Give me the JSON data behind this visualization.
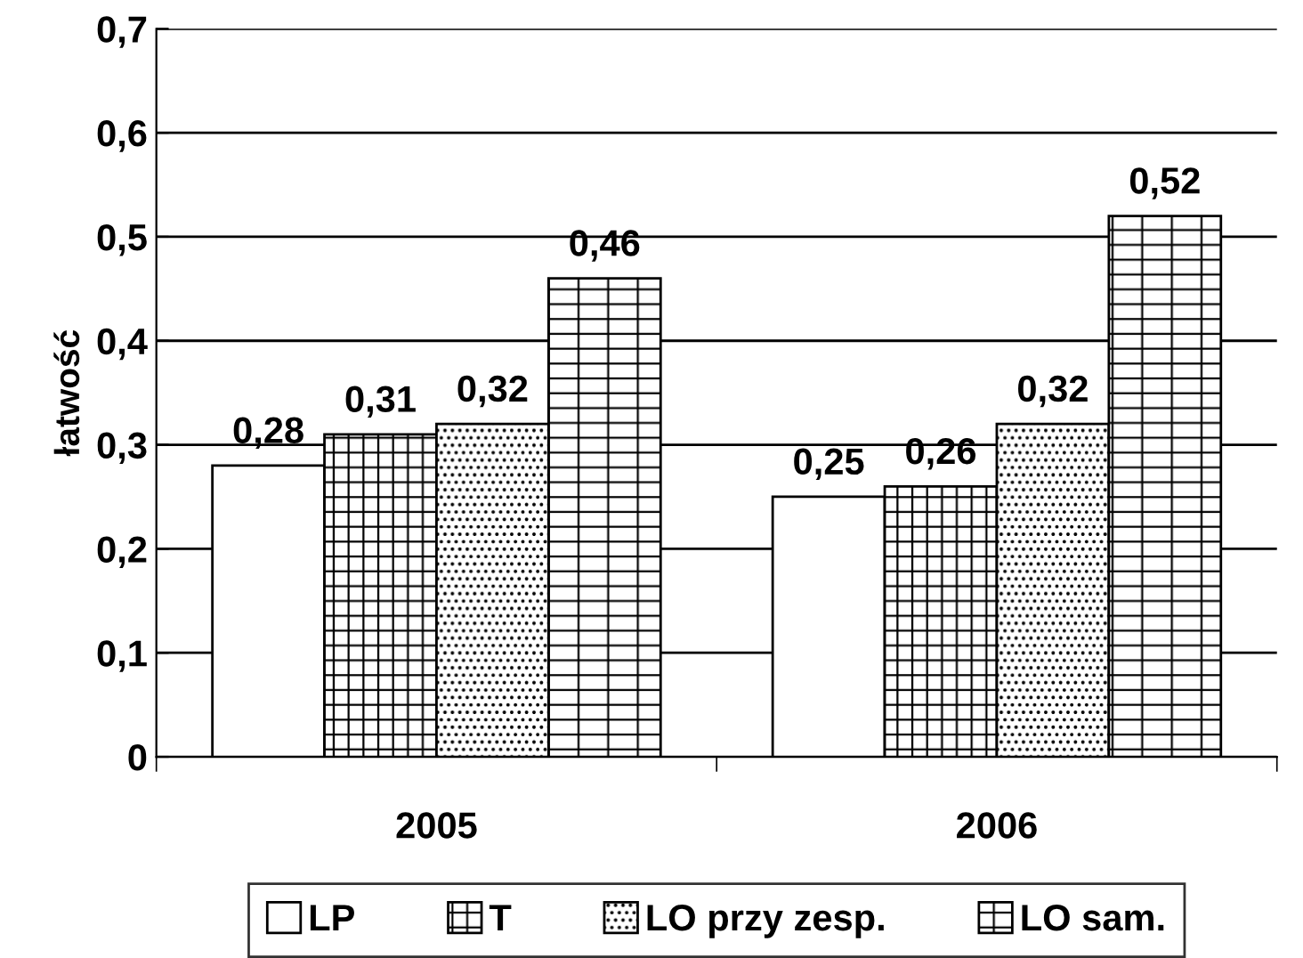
{
  "chart_data": {
    "type": "bar",
    "ylabel": "łatwość",
    "categories": [
      "2005",
      "2006"
    ],
    "series": [
      {
        "name": "LP",
        "color": "#ffffff",
        "values": [
          0.28,
          0.25
        ],
        "value_labels": [
          "0,28",
          "0,25"
        ]
      },
      {
        "name": "T",
        "color": "#000000",
        "values": [
          0.31,
          0.26
        ],
        "value_labels": [
          "0,31",
          "0,26"
        ]
      },
      {
        "name": "LO przy zesp.",
        "color": "#000000",
        "values": [
          0.32,
          0.32
        ],
        "value_labels": [
          "0,32",
          "0,32"
        ]
      },
      {
        "name": "LO sam.",
        "color": "#000000",
        "values": [
          0.46,
          0.52
        ],
        "value_labels": [
          "0,46",
          "0,52"
        ]
      }
    ],
    "ylim": [
      0,
      0.7
    ],
    "yticks": [
      {
        "value": 0,
        "label": "0"
      },
      {
        "value": 0.1,
        "label": "0,1"
      },
      {
        "value": 0.2,
        "label": "0,2"
      },
      {
        "value": 0.3,
        "label": "0,3"
      },
      {
        "value": 0.4,
        "label": "0,4"
      },
      {
        "value": 0.5,
        "label": "0,5"
      },
      {
        "value": 0.6,
        "label": "0,6"
      },
      {
        "value": 0.7,
        "label": "0,7"
      }
    ],
    "grid": "y",
    "legend": "bottom"
  }
}
